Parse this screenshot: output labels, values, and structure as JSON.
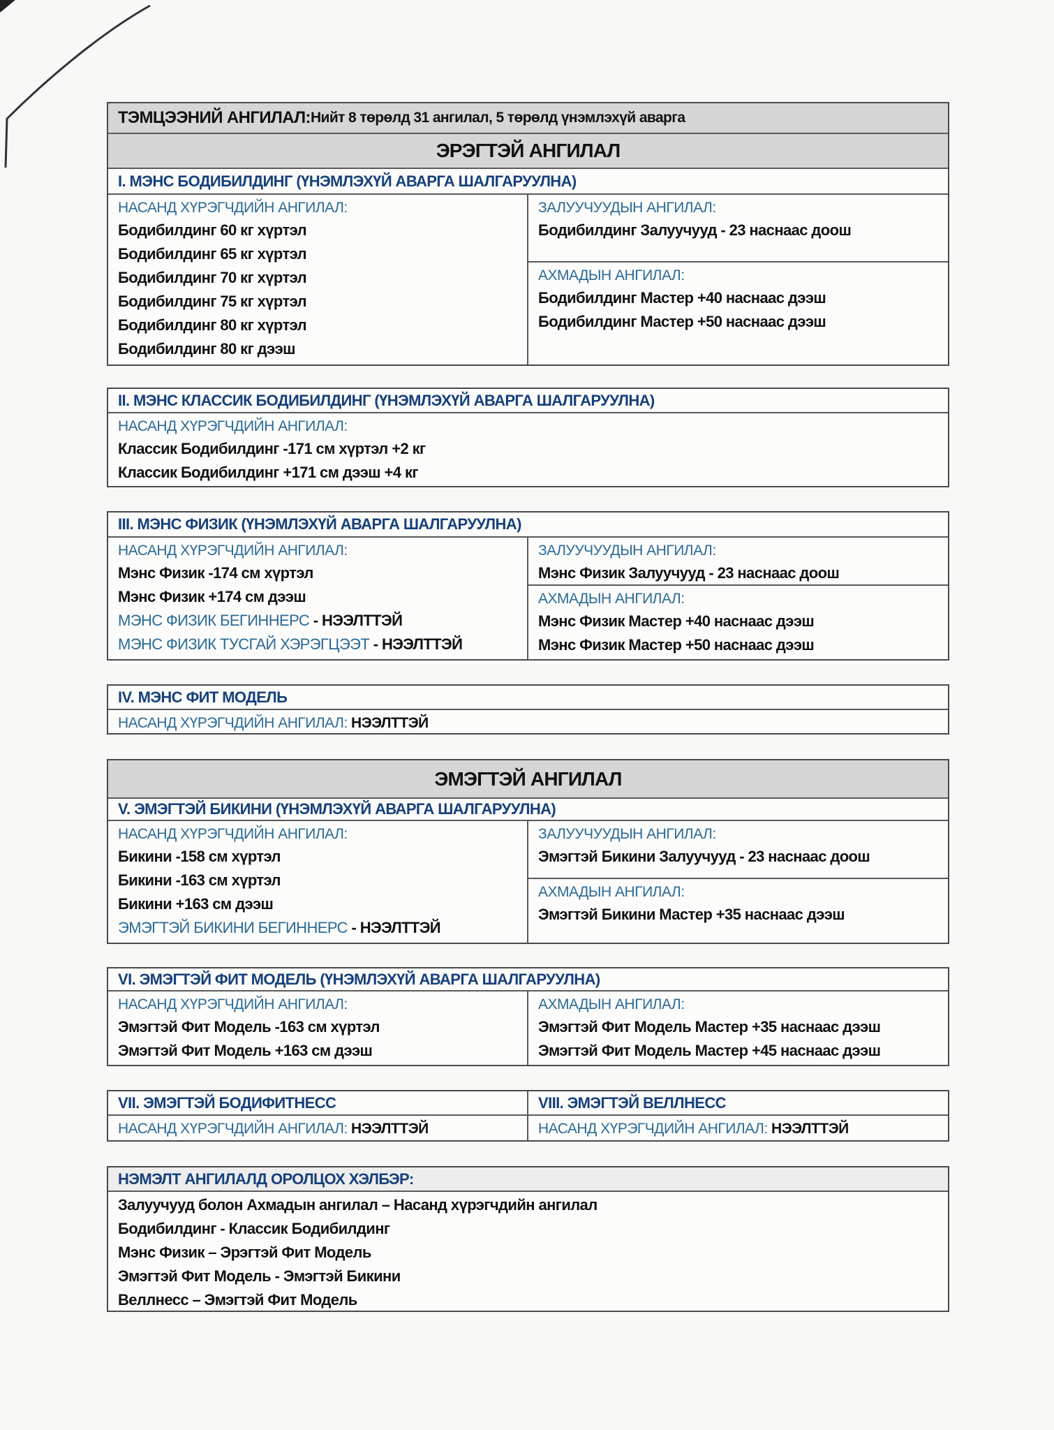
{
  "header": {
    "bold": "ТЭМЦЭЭНИЙ АНГИЛАЛ:",
    "rest": " Нийт 8 төрөлд 31 ангилал, 5 төрөлд үнэмлэхүй аварга"
  },
  "men_title": "ЭРЭГТЭЙ АНГИЛАЛ",
  "women_title": "ЭМЭГТЭЙ АНГИЛАЛ",
  "sections": [
    {
      "title": "I. МЭНС БОДИБИЛДИНГ (ҮНЭМЛЭХҮЙ АВАРГА ШАЛГАРУУЛНА)",
      "left": [
        {
          "label": "НАСАНД ХҮРЭГЧДИЙН АНГИЛАЛ:",
          "items": [
            {
              "text": "Бодибилдинг 60 кг хүртэл"
            },
            {
              "text": "Бодибилдинг 65 кг хүртэл"
            },
            {
              "text": "Бодибилдинг 70 кг хүртэл"
            },
            {
              "text": "Бодибилдинг 75 кг хүртэл"
            },
            {
              "text": "Бодибилдинг 80 кг хүртэл"
            },
            {
              "text": "Бодибилдинг 80 кг дээш"
            }
          ]
        }
      ],
      "right": [
        {
          "label": "ЗАЛУУЧУУДЫН АНГИЛАЛ:",
          "items": [
            {
              "text": "Бодибилдинг Залуучууд - 23 наснаас доош"
            }
          ]
        },
        {
          "label": "АХМАДЫН АНГИЛАЛ:",
          "items": [
            {
              "text": "Бодибилдинг Мастер +40 наснаас дээш"
            },
            {
              "text": "Бодибилдинг Мастер +50 наснаас дээш"
            }
          ]
        }
      ]
    },
    {
      "title": "II. МЭНС КЛАССИК БОДИБИЛДИНГ (ҮНЭМЛЭХҮЙ АВАРГА ШАЛГАРУУЛНА)",
      "left": [
        {
          "label": "НАСАНД ХҮРЭГЧДИЙН АНГИЛАЛ:",
          "items": [
            {
              "text": "Классик Бодибилдинг -171 см хүртэл +2 кг"
            },
            {
              "text": "Классик Бодибилдинг +171 см дээш +4 кг"
            }
          ]
        }
      ]
    },
    {
      "title": "III. МЭНС ФИЗИК (ҮНЭМЛЭХҮЙ АВАРГА ШАЛГАРУУЛНА)",
      "left": [
        {
          "label": "НАСАНД ХҮРЭГЧДИЙН АНГИЛАЛ:",
          "items": [
            {
              "text": "Мэнс Физик -174 см хүртэл"
            },
            {
              "text": "Мэнс Физик +174 см дээш"
            },
            {
              "text": "МЭНС ФИЗИК БЕГИННЕРС",
              "suffix": " - НЭЭЛТТЭЙ",
              "blue": true
            },
            {
              "text": "МЭНС ФИЗИК ТУСГАЙ ХЭРЭГЦЭЭТ",
              "suffix": " - НЭЭЛТТЭЙ",
              "blue": true
            }
          ]
        }
      ],
      "right": [
        {
          "label": "ЗАЛУУЧУУДЫН АНГИЛАЛ:",
          "items": [
            {
              "text": "Мэнс Физик Залуучууд - 23 наснаас доош"
            }
          ]
        },
        {
          "label": "АХМАДЫН АНГИЛАЛ:",
          "items": [
            {
              "text": "Мэнс Физик Мастер +40 наснаас дээш"
            },
            {
              "text": "Мэнс Физик Мастер +50 наснаас дээш"
            }
          ]
        }
      ]
    },
    {
      "title": "IV. МЭНС ФИТ МОДЕЛЬ",
      "left": [
        {
          "label": "НАСАНД ХҮРЭГЧДИЙН АНГИЛАЛ:",
          "label_suffix": " НЭЭЛТТЭЙ",
          "items": []
        }
      ]
    },
    {
      "title": "V. ЭМЭГТЭЙ БИКИНИ (ҮНЭМЛЭХҮЙ АВАРГА ШАЛГАРУУЛНА)",
      "left": [
        {
          "label": "НАСАНД ХҮРЭГЧДИЙН АНГИЛАЛ:",
          "items": [
            {
              "text": "Бикини -158 см хүртэл"
            },
            {
              "text": "Бикини -163 см хүртэл"
            },
            {
              "text": "Бикини +163 см дээш"
            },
            {
              "text": "ЭМЭГТЭЙ БИКИНИ БЕГИННЕРС",
              "suffix": " - НЭЭЛТТЭЙ",
              "blue": true
            }
          ]
        }
      ],
      "right": [
        {
          "label": "ЗАЛУУЧУУДЫН АНГИЛАЛ:",
          "items": [
            {
              "text": "Эмэгтэй Бикини Залуучууд - 23 наснаас доош"
            }
          ]
        },
        {
          "label": "АХМАДЫН АНГИЛАЛ:",
          "items": [
            {
              "text": "Эмэгтэй Бикини Мастер +35 наснаас дээш"
            }
          ]
        }
      ]
    },
    {
      "title": "VI. ЭМЭГТЭЙ ФИТ МОДЕЛЬ (ҮНЭМЛЭХҮЙ АВАРГА ШАЛГАРУУЛНА)",
      "left": [
        {
          "label": "НАСАНД ХҮРЭГЧДИЙН АНГИЛАЛ:",
          "items": [
            {
              "text": "Эмэгтэй Фит Модель -163 см хүртэл"
            },
            {
              "text": "Эмэгтэй Фит Модель +163 см дээш"
            }
          ]
        }
      ],
      "right": [
        {
          "label": "АХМАДЫН АНГИЛАЛ:",
          "items": [
            {
              "text": "Эмэгтэй Фит Модель Мастер +35 наснаас дээш"
            },
            {
              "text": "Эмэгтэй Фит Модель Мастер +45 наснаас дээш"
            }
          ]
        }
      ]
    },
    {
      "title": "VII. ЭМЭГТЭЙ БОДИФИТНЕСС",
      "left": [
        {
          "label": "НАСАНД ХҮРЭГЧДИЙН АНГИЛАЛ:",
          "label_suffix": " НЭЭЛТТЭЙ",
          "items": []
        }
      ]
    },
    {
      "title": "VIII. ЭМЭГТЭЙ ВЕЛЛНЕСС",
      "left": [
        {
          "label": "НАСАНД ХҮРЭГЧДИЙН АНГИЛАЛ:",
          "label_suffix": " НЭЭЛТТЭЙ",
          "items": []
        }
      ]
    }
  ],
  "extra": {
    "title": "НЭМЭЛТ АНГИЛАЛД ОРОЛЦОХ ХЭЛБЭР:",
    "items": [
      "Залуучууд болон Ахмадын ангилал – Насанд хүрэгчдийн ангилал",
      "Бодибилдинг - Классик Бодибилдинг",
      "Мэнс Физик – Эрэгтэй Фит Модель",
      "Эмэгтэй Фит Модель - Эмэгтэй Бикини",
      "Веллнесс – Эмэгтэй Фит Модель"
    ]
  },
  "colors": {
    "section_title": "#16407a",
    "category_label": "#2b6a96",
    "header_bg": "#d6d6d6"
  }
}
